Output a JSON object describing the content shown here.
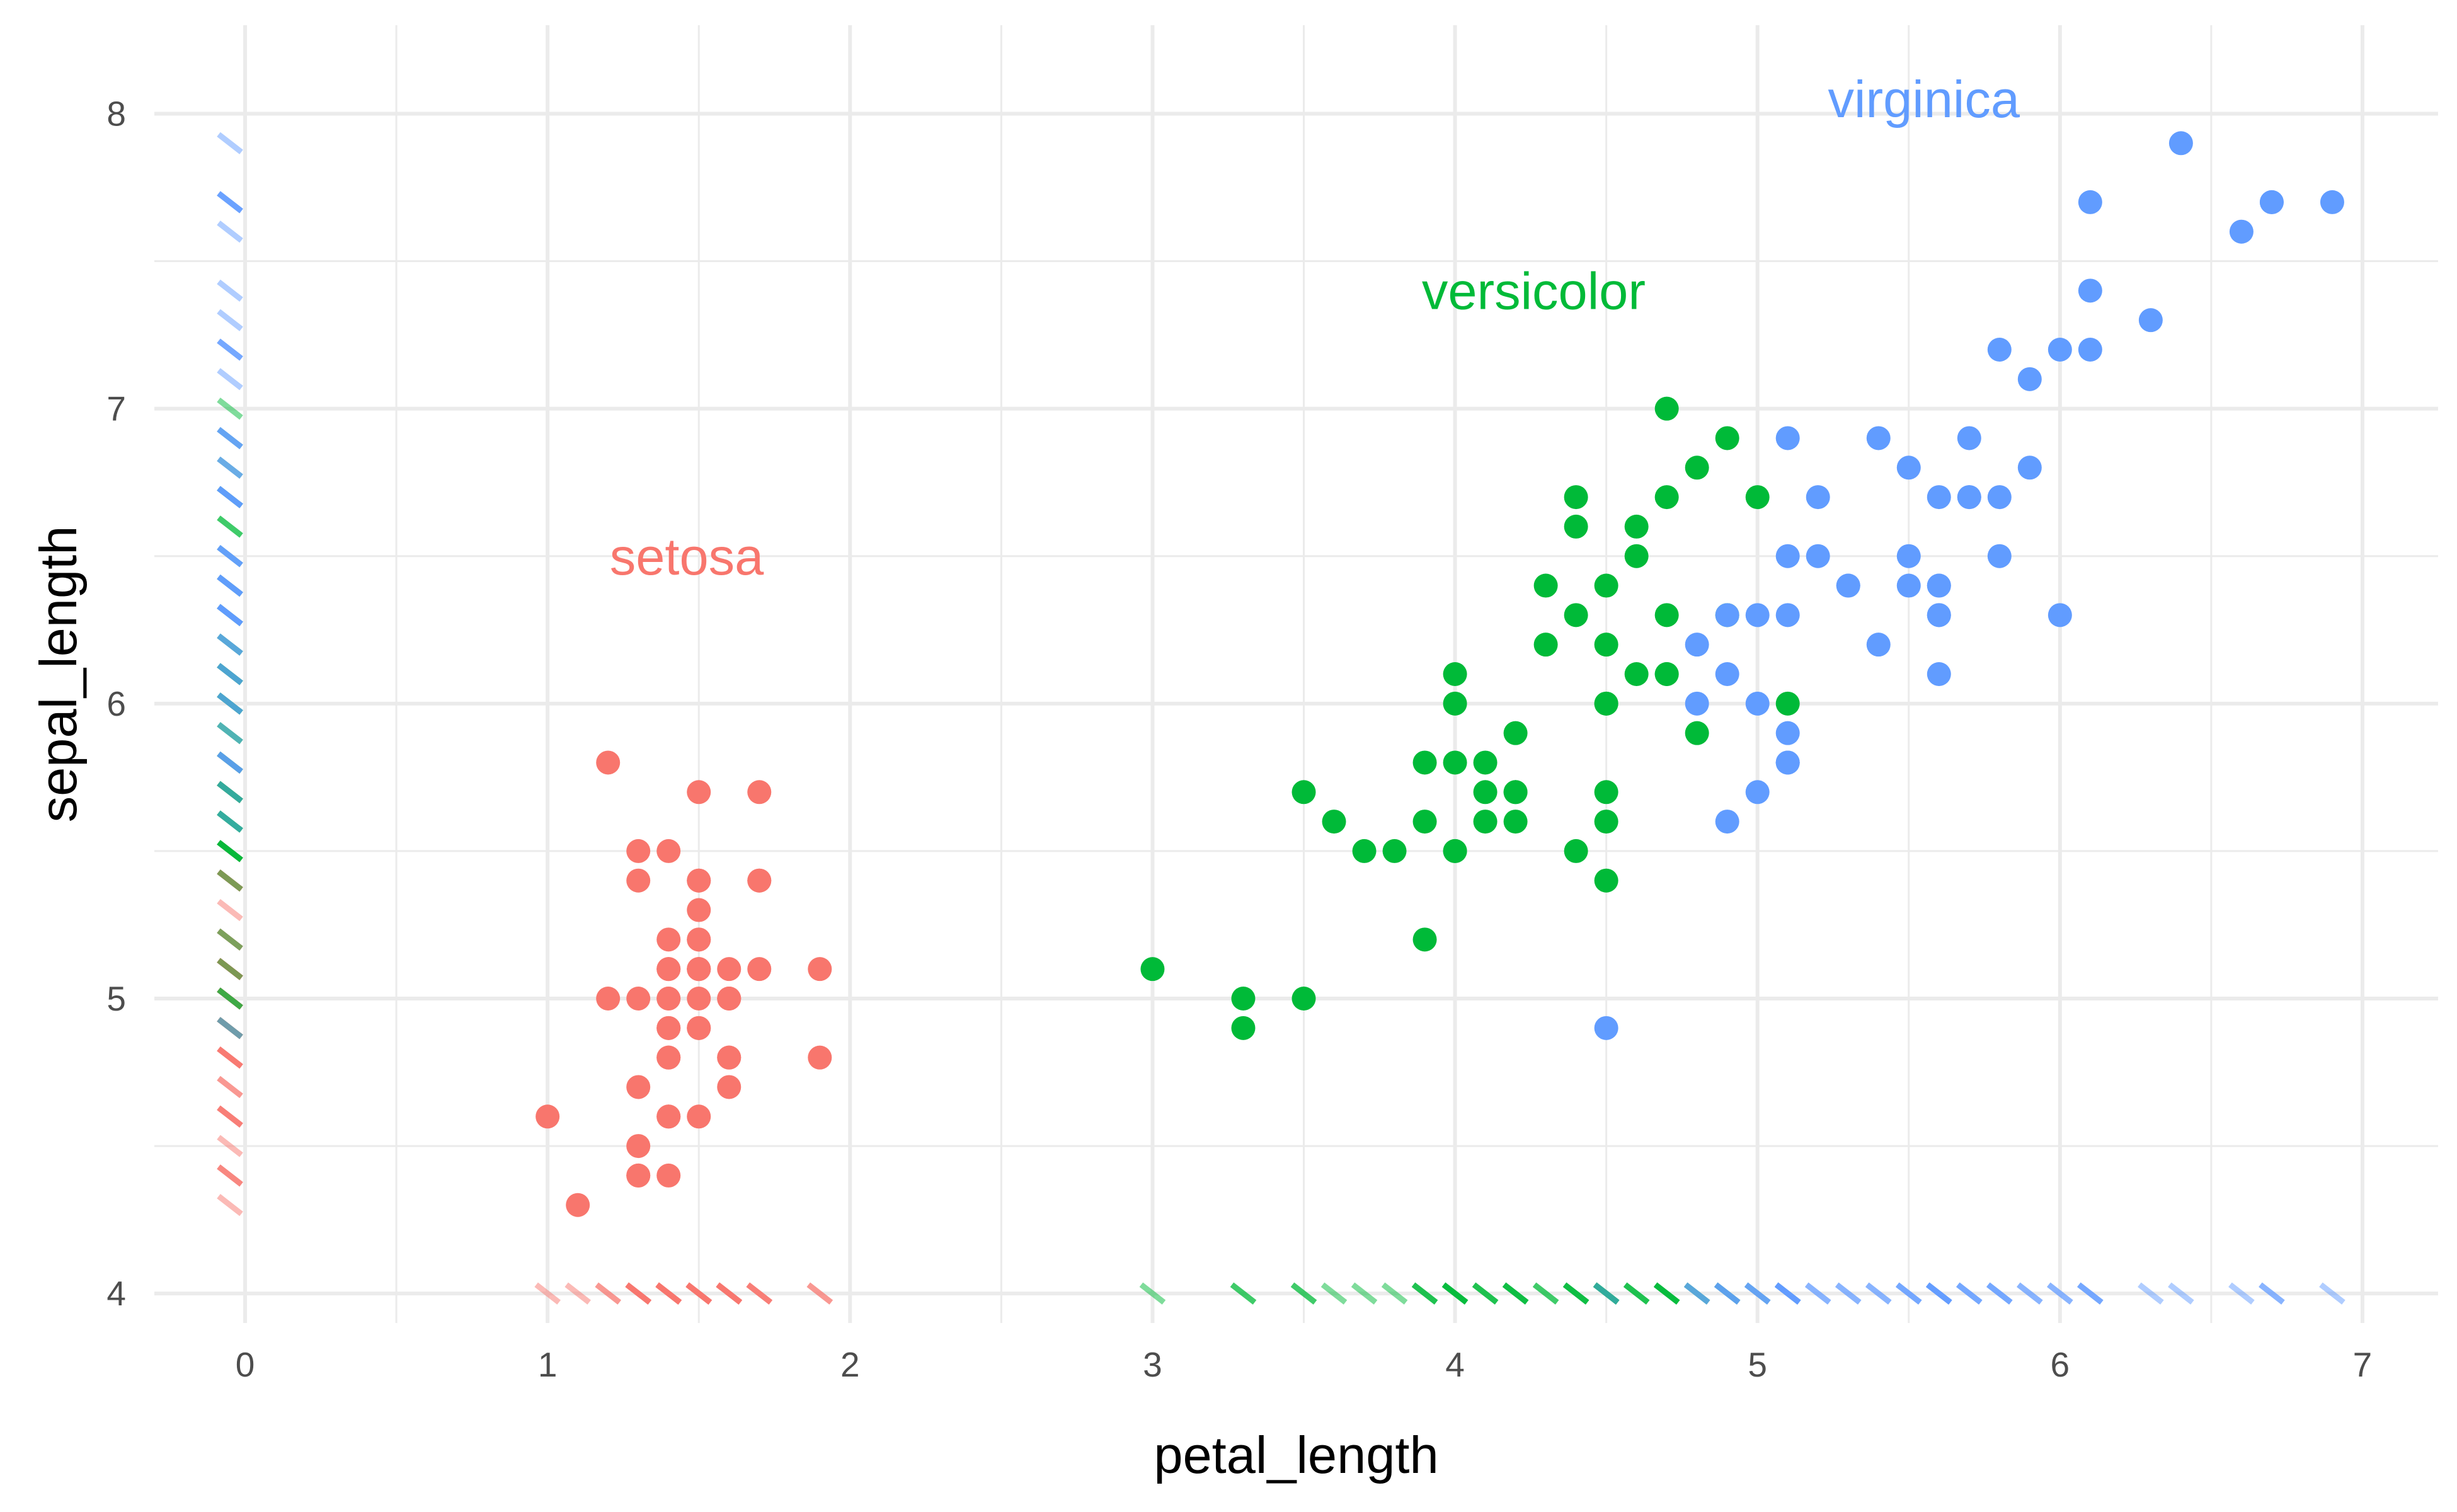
{
  "chart_data": {
    "type": "scatter",
    "xlabel": "petal_length",
    "ylabel": "sepal_length",
    "xlim": [
      -0.3,
      7.25
    ],
    "ylim": [
      3.9,
      8.3
    ],
    "x_ticks": [
      0,
      1,
      2,
      3,
      4,
      5,
      6,
      7
    ],
    "x_tick_labels": [
      "0",
      "1",
      "2",
      "3",
      "4",
      "5",
      "6",
      "7"
    ],
    "y_ticks": [
      4,
      5,
      6,
      7,
      8
    ],
    "y_tick_labels": [
      "4",
      "5",
      "6",
      "7",
      "8"
    ],
    "grid": true,
    "legend": "none",
    "rug": {
      "x_at_y": 4,
      "y_at_x": -0.05,
      "alpha": 0.5
    },
    "group_labels": [
      {
        "text": "setosa",
        "series": "setosa",
        "x": 1.46,
        "y": 6.5
      },
      {
        "text": "versicolor",
        "series": "versicolor",
        "x": 4.26,
        "y": 7.4
      },
      {
        "text": "virginica",
        "series": "virginica",
        "x": 5.55,
        "y": 8.05
      }
    ],
    "series": [
      {
        "name": "setosa",
        "color": "#F8766D",
        "points": [
          [
            1.4,
            5.1
          ],
          [
            1.4,
            4.9
          ],
          [
            1.3,
            4.7
          ],
          [
            1.5,
            4.6
          ],
          [
            1.4,
            5.0
          ],
          [
            1.7,
            5.4
          ],
          [
            1.4,
            4.6
          ],
          [
            1.5,
            5.0
          ],
          [
            1.4,
            4.4
          ],
          [
            1.5,
            4.9
          ],
          [
            1.5,
            5.4
          ],
          [
            1.6,
            4.8
          ],
          [
            1.4,
            4.8
          ],
          [
            1.1,
            4.3
          ],
          [
            1.2,
            5.8
          ],
          [
            1.5,
            5.7
          ],
          [
            1.3,
            5.4
          ],
          [
            1.4,
            5.1
          ],
          [
            1.7,
            5.7
          ],
          [
            1.5,
            5.1
          ],
          [
            1.7,
            5.4
          ],
          [
            1.5,
            5.1
          ],
          [
            1.0,
            4.6
          ],
          [
            1.7,
            5.1
          ],
          [
            1.9,
            4.8
          ],
          [
            1.6,
            5.0
          ],
          [
            1.6,
            5.0
          ],
          [
            1.5,
            5.2
          ],
          [
            1.4,
            5.2
          ],
          [
            1.6,
            4.7
          ],
          [
            1.6,
            4.8
          ],
          [
            1.5,
            5.4
          ],
          [
            1.5,
            5.2
          ],
          [
            1.4,
            5.5
          ],
          [
            1.5,
            4.9
          ],
          [
            1.2,
            5.0
          ],
          [
            1.3,
            5.5
          ],
          [
            1.4,
            4.9
          ],
          [
            1.3,
            4.4
          ],
          [
            1.5,
            5.1
          ],
          [
            1.3,
            5.0
          ],
          [
            1.3,
            4.5
          ],
          [
            1.3,
            4.4
          ],
          [
            1.6,
            5.0
          ],
          [
            1.9,
            5.1
          ],
          [
            1.4,
            4.8
          ],
          [
            1.6,
            5.1
          ],
          [
            1.4,
            4.6
          ],
          [
            1.5,
            5.3
          ],
          [
            1.4,
            5.0
          ]
        ]
      },
      {
        "name": "versicolor",
        "color": "#00BA38",
        "points": [
          [
            4.7,
            7.0
          ],
          [
            4.5,
            6.4
          ],
          [
            4.9,
            6.9
          ],
          [
            4.0,
            5.5
          ],
          [
            4.6,
            6.5
          ],
          [
            4.5,
            5.7
          ],
          [
            4.7,
            6.3
          ],
          [
            3.3,
            4.9
          ],
          [
            4.6,
            6.6
          ],
          [
            3.9,
            5.2
          ],
          [
            3.5,
            5.0
          ],
          [
            4.2,
            5.9
          ],
          [
            4.0,
            6.0
          ],
          [
            4.7,
            6.1
          ],
          [
            3.6,
            5.6
          ],
          [
            4.4,
            6.7
          ],
          [
            4.5,
            5.6
          ],
          [
            4.1,
            5.8
          ],
          [
            4.5,
            6.2
          ],
          [
            3.9,
            5.6
          ],
          [
            4.8,
            5.9
          ],
          [
            4.0,
            6.1
          ],
          [
            4.9,
            6.3
          ],
          [
            4.7,
            6.1
          ],
          [
            4.3,
            6.4
          ],
          [
            4.4,
            6.6
          ],
          [
            4.8,
            6.8
          ],
          [
            5.0,
            6.7
          ],
          [
            4.5,
            6.0
          ],
          [
            3.5,
            5.7
          ],
          [
            3.8,
            5.5
          ],
          [
            3.7,
            5.5
          ],
          [
            3.9,
            5.8
          ],
          [
            5.1,
            6.0
          ],
          [
            4.5,
            5.4
          ],
          [
            4.5,
            6.0
          ],
          [
            4.7,
            6.7
          ],
          [
            4.4,
            6.3
          ],
          [
            4.1,
            5.6
          ],
          [
            4.0,
            5.5
          ],
          [
            4.4,
            5.5
          ],
          [
            4.6,
            6.1
          ],
          [
            4.0,
            5.8
          ],
          [
            3.3,
            5.0
          ],
          [
            4.2,
            5.6
          ],
          [
            4.2,
            5.7
          ],
          [
            4.2,
            5.7
          ],
          [
            4.3,
            6.2
          ],
          [
            3.0,
            5.1
          ],
          [
            4.1,
            5.7
          ]
        ]
      },
      {
        "name": "virginica",
        "color": "#619CFF",
        "points": [
          [
            6.0,
            6.3
          ],
          [
            5.1,
            5.8
          ],
          [
            5.9,
            7.1
          ],
          [
            5.6,
            6.3
          ],
          [
            5.8,
            6.5
          ],
          [
            6.6,
            7.6
          ],
          [
            4.5,
            4.9
          ],
          [
            6.3,
            7.3
          ],
          [
            5.8,
            6.7
          ],
          [
            6.1,
            7.2
          ],
          [
            5.1,
            6.5
          ],
          [
            5.3,
            6.4
          ],
          [
            5.5,
            6.8
          ],
          [
            5.0,
            5.7
          ],
          [
            5.1,
            5.8
          ],
          [
            5.3,
            6.4
          ],
          [
            5.5,
            6.5
          ],
          [
            6.7,
            7.7
          ],
          [
            6.9,
            7.7
          ],
          [
            5.0,
            6.0
          ],
          [
            5.7,
            6.9
          ],
          [
            4.9,
            5.6
          ],
          [
            6.7,
            7.7
          ],
          [
            4.9,
            6.3
          ],
          [
            5.7,
            6.7
          ],
          [
            6.0,
            7.2
          ],
          [
            4.8,
            6.2
          ],
          [
            4.9,
            6.1
          ],
          [
            5.6,
            6.4
          ],
          [
            5.8,
            7.2
          ],
          [
            6.1,
            7.4
          ],
          [
            6.4,
            7.9
          ],
          [
            5.6,
            6.4
          ],
          [
            5.1,
            6.3
          ],
          [
            5.6,
            6.1
          ],
          [
            6.1,
            7.7
          ],
          [
            5.6,
            6.3
          ],
          [
            5.5,
            6.4
          ],
          [
            4.8,
            6.0
          ],
          [
            5.4,
            6.9
          ],
          [
            5.6,
            6.7
          ],
          [
            5.1,
            6.9
          ],
          [
            5.1,
            5.8
          ],
          [
            5.9,
            6.8
          ],
          [
            5.7,
            6.7
          ],
          [
            5.2,
            6.7
          ],
          [
            5.0,
            6.3
          ],
          [
            5.2,
            6.5
          ],
          [
            5.4,
            6.2
          ],
          [
            5.1,
            5.9
          ]
        ]
      }
    ]
  }
}
